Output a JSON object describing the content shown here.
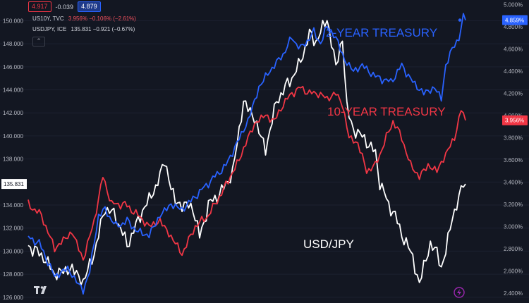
{
  "topbar": {
    "left_value": "4.917",
    "change": "-0.039",
    "right_value": "4.879"
  },
  "legend": [
    {
      "symbol": "US10Y, TVC",
      "values": "3.956%  −0.106% (−2.61%)",
      "color": "#f7525f"
    },
    {
      "symbol": "USDJPY, ICE",
      "values": "135.831  −0.921 (−0.67%)",
      "color": "#d1d4dc"
    }
  ],
  "icons": {
    "collapse": "chevron-up-icon",
    "logo": "tradingview-logo-icon",
    "alert": "lightning-icon"
  },
  "chart_data": {
    "type": "line",
    "x_points": 200,
    "left_axis": {
      "range": [
        125.5,
        151.8
      ],
      "ticks": [
        "150.000",
        "148.000",
        "146.000",
        "144.000",
        "142.000",
        "140.000",
        "138.000",
        "136.000",
        "134.000",
        "132.000",
        "130.000",
        "128.000",
        "126.000"
      ],
      "tick_values": [
        150,
        148,
        146,
        144,
        142,
        140,
        138,
        136,
        134,
        132,
        130,
        128,
        126
      ],
      "last_label": "135.831",
      "last_value": 135.831
    },
    "right_axis": {
      "range": [
        2.31,
        5.04
      ],
      "ticks": [
        "5.000%",
        "4.800%",
        "4.600%",
        "4.400%",
        "4.200%",
        "4.000%",
        "3.800%",
        "3.600%",
        "3.400%",
        "3.200%",
        "3.000%",
        "2.800%",
        "2.600%",
        "2.400%"
      ],
      "tick_values": [
        5.0,
        4.8,
        4.6,
        4.4,
        4.2,
        4.0,
        3.8,
        3.6,
        3.4,
        3.2,
        3.0,
        2.8,
        2.6,
        2.4
      ],
      "last_labels": [
        {
          "text": "4.859%",
          "value": 4.859,
          "color": "#2962ff"
        },
        {
          "text": "3.956%",
          "value": 3.956,
          "color": "#f23645"
        }
      ]
    },
    "annotations": [
      {
        "text": "2-YEAR TREASURY",
        "color": "#2962ff"
      },
      {
        "text": "10-YEAR TREASURY",
        "color": "#f23645"
      },
      {
        "text": "USD/JPY",
        "color": "#ffffff"
      }
    ],
    "series": [
      {
        "name": "USD/JPY",
        "axis": "left",
        "color": "#ffffff",
        "anchors": [
          [
            0,
            130.5
          ],
          [
            7,
            129.5
          ],
          [
            12,
            128.0
          ],
          [
            20,
            128.5
          ],
          [
            25,
            127.3
          ],
          [
            30,
            129.8
          ],
          [
            35,
            133.8
          ],
          [
            40,
            133.0
          ],
          [
            45,
            130.5
          ],
          [
            52,
            133.5
          ],
          [
            58,
            135.5
          ],
          [
            62,
            137.8
          ],
          [
            67,
            134.2
          ],
          [
            75,
            133.8
          ],
          [
            78,
            131.2
          ],
          [
            82,
            134.0
          ],
          [
            88,
            135.2
          ],
          [
            93,
            136.8
          ],
          [
            98,
            143.0
          ],
          [
            103,
            141.5
          ],
          [
            108,
            138.8
          ],
          [
            113,
            143.0
          ],
          [
            118,
            144.5
          ],
          [
            123,
            146.0
          ],
          [
            128,
            148.8
          ],
          [
            131,
            148.2
          ],
          [
            136,
            150.2
          ],
          [
            140,
            146.0
          ],
          [
            143,
            148.5
          ],
          [
            145,
            142.5
          ],
          [
            148,
            140.5
          ],
          [
            152,
            140.0
          ],
          [
            156,
            139.0
          ],
          [
            158,
            138.5
          ],
          [
            160,
            136.0
          ],
          [
            164,
            134.0
          ],
          [
            166,
            133.5
          ],
          [
            170,
            131.5
          ],
          [
            175,
            129.5
          ],
          [
            178,
            127.0
          ],
          [
            180,
            128.8
          ],
          [
            183,
            130.5
          ],
          [
            186,
            130.0
          ],
          [
            188,
            128.5
          ],
          [
            190,
            130.0
          ],
          [
            193,
            133.0
          ],
          [
            196,
            134.5
          ],
          [
            198,
            136.0
          ],
          [
            199,
            135.831
          ]
        ]
      },
      {
        "name": "10-YEAR TREASURY",
        "axis": "right",
        "color": "#f23645",
        "anchors": [
          [
            0,
            3.2
          ],
          [
            6,
            3.1
          ],
          [
            12,
            2.8
          ],
          [
            20,
            2.95
          ],
          [
            25,
            2.7
          ],
          [
            30,
            3.05
          ],
          [
            34,
            3.45
          ],
          [
            38,
            3.2
          ],
          [
            44,
            3.2
          ],
          [
            50,
            3.1
          ],
          [
            55,
            3.0
          ],
          [
            60,
            3.05
          ],
          [
            67,
            2.85
          ],
          [
            70,
            2.75
          ],
          [
            76,
            3.0
          ],
          [
            82,
            3.1
          ],
          [
            88,
            3.3
          ],
          [
            92,
            3.45
          ],
          [
            96,
            3.6
          ],
          [
            100,
            3.8
          ],
          [
            104,
            3.95
          ],
          [
            108,
            4.0
          ],
          [
            112,
            3.95
          ],
          [
            116,
            4.1
          ],
          [
            120,
            4.2
          ],
          [
            124,
            4.25
          ],
          [
            128,
            4.2
          ],
          [
            132,
            4.2
          ],
          [
            136,
            4.15
          ],
          [
            140,
            4.2
          ],
          [
            143,
            4.1
          ],
          [
            146,
            3.8
          ],
          [
            150,
            3.75
          ],
          [
            154,
            3.5
          ],
          [
            158,
            3.55
          ],
          [
            162,
            3.75
          ],
          [
            166,
            3.95
          ],
          [
            170,
            3.8
          ],
          [
            174,
            3.55
          ],
          [
            178,
            3.45
          ],
          [
            182,
            3.55
          ],
          [
            186,
            3.5
          ],
          [
            190,
            3.65
          ],
          [
            194,
            3.8
          ],
          [
            197,
            4.05
          ],
          [
            199,
            3.956
          ]
        ]
      },
      {
        "name": "2-YEAR TREASURY",
        "axis": "right",
        "color": "#2962ff",
        "anchors": [
          [
            0,
            2.9
          ],
          [
            5,
            2.85
          ],
          [
            12,
            2.55
          ],
          [
            18,
            2.62
          ],
          [
            25,
            2.42
          ],
          [
            28,
            2.6
          ],
          [
            32,
            3.1
          ],
          [
            35,
            3.15
          ],
          [
            40,
            3.0
          ],
          [
            45,
            3.05
          ],
          [
            50,
            2.95
          ],
          [
            55,
            2.92
          ],
          [
            60,
            3.1
          ],
          [
            65,
            3.2
          ],
          [
            70,
            3.15
          ],
          [
            75,
            3.25
          ],
          [
            80,
            3.35
          ],
          [
            85,
            3.45
          ],
          [
            90,
            3.55
          ],
          [
            95,
            3.75
          ],
          [
            100,
            3.95
          ],
          [
            105,
            4.25
          ],
          [
            108,
            4.35
          ],
          [
            112,
            4.45
          ],
          [
            116,
            4.55
          ],
          [
            120,
            4.7
          ],
          [
            124,
            4.6
          ],
          [
            128,
            4.7
          ],
          [
            130,
            4.75
          ],
          [
            133,
            4.65
          ],
          [
            136,
            4.8
          ],
          [
            140,
            4.7
          ],
          [
            144,
            4.5
          ],
          [
            148,
            4.4
          ],
          [
            152,
            4.45
          ],
          [
            158,
            4.35
          ],
          [
            165,
            4.3
          ],
          [
            170,
            4.45
          ],
          [
            175,
            4.3
          ],
          [
            180,
            4.2
          ],
          [
            185,
            4.25
          ],
          [
            188,
            4.15
          ],
          [
            190,
            4.45
          ],
          [
            193,
            4.6
          ],
          [
            196,
            4.7
          ],
          [
            198,
            4.88
          ],
          [
            199,
            4.859
          ]
        ]
      }
    ]
  }
}
